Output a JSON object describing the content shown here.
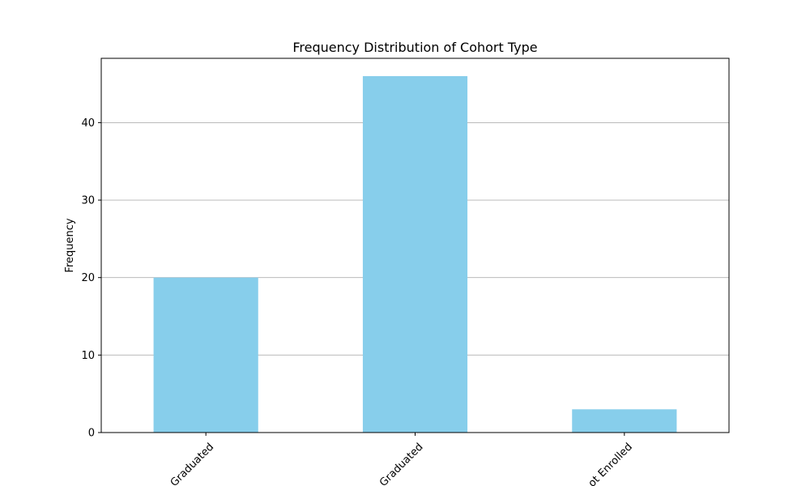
{
  "chart_data": {
    "type": "bar",
    "title": "Frequency Distribution of Cohort Type",
    "xlabel": "",
    "ylabel": "Frequency",
    "categories": [
      "Graduated",
      "Graduated",
      "ot Enrolled"
    ],
    "values": [
      20,
      46,
      3
    ],
    "ylim": [
      0,
      48.3
    ],
    "yticks": [
      0,
      10,
      20,
      30,
      40
    ],
    "grid": "y",
    "bar_color": "#87ceeb",
    "xtick_rotation": -45
  }
}
